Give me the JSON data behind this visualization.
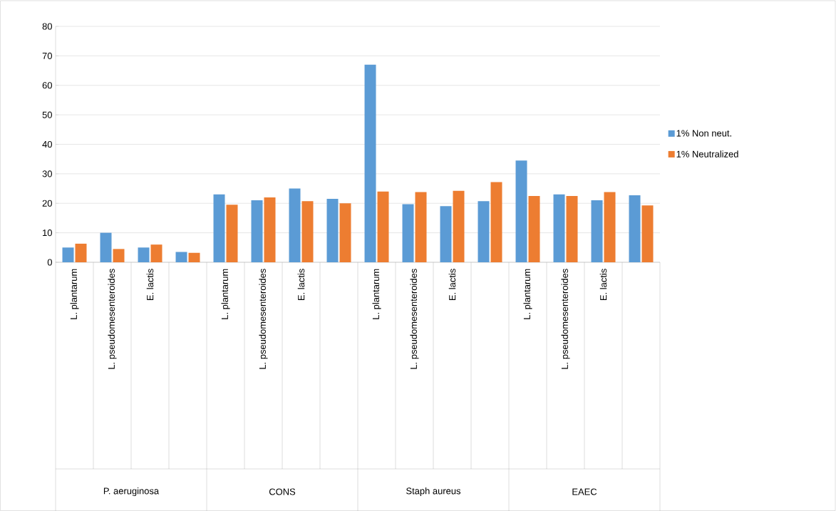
{
  "chart_data": {
    "type": "bar",
    "categories": [
      "L. plantarum",
      "L. pseudomesenteroides",
      "E. lactis",
      null,
      "L. plantarum",
      "L. pseudomesenteroides",
      "E. lactis",
      null,
      "L. plantarum",
      "L. pseudomesenteroides",
      "E. lactis",
      null,
      "L. plantarum",
      "L. pseudomesenteroides",
      "E. lactis",
      null
    ],
    "series": [
      {
        "name": "1% Non neut.",
        "color": "#5b9bd5",
        "values": [
          5,
          10,
          5,
          3.5,
          23,
          21,
          25,
          21.5,
          67,
          19.7,
          19,
          20.7,
          34.5,
          23,
          21,
          22.7
        ]
      },
      {
        "name": "1% Neutralized",
        "color": "#ed7d31",
        "values": [
          6.3,
          4.5,
          6,
          3.2,
          19.5,
          22,
          20.7,
          20,
          24,
          23.8,
          24.2,
          27.2,
          22.5,
          22.5,
          23.8,
          19.3
        ]
      }
    ],
    "annotations": [
      "P. aeruginosa",
      "CONS",
      "Staph aureus",
      "EAEC"
    ],
    "ylim": [
      0,
      80
    ],
    "yticks": [
      0,
      10,
      20,
      30,
      40,
      50,
      60,
      70,
      80
    ],
    "grid": "y",
    "legend": "right"
  }
}
